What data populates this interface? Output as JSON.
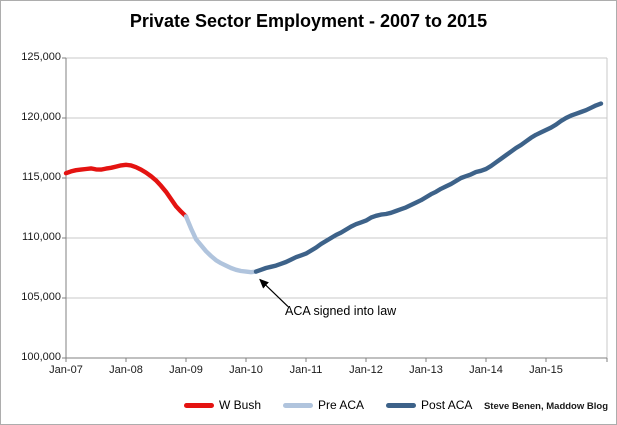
{
  "footer": {
    "credit": "Steve Benen, Maddow Blog"
  },
  "colors": {
    "w_bush": "#e41311",
    "pre_aca": "#b0c4dd",
    "post_aca": "#3d6289",
    "gridline": "#c9c9c9",
    "axis": "#808080"
  },
  "chart_data": {
    "type": "line",
    "title": "Private Sector Employment - 2007 to 2015",
    "xlabel": "",
    "ylabel": "",
    "ylim": [
      100000,
      125000
    ],
    "grid": true,
    "legend_position": "bottom",
    "x_start": "Jan-07",
    "x_end": "Dec-15",
    "months_total": 108,
    "y_ticks": [
      {
        "value": 100000,
        "label": "100,000"
      },
      {
        "value": 105000,
        "label": "105,000"
      },
      {
        "value": 110000,
        "label": "110,000"
      },
      {
        "value": 115000,
        "label": "115,000"
      },
      {
        "value": 120000,
        "label": "120,000"
      },
      {
        "value": 125000,
        "label": "125,000"
      }
    ],
    "x_tick_labels": [
      "Jan-07",
      "Jan-08",
      "Jan-09",
      "Jan-10",
      "Jan-11",
      "Jan-12",
      "Jan-13",
      "Jan-14",
      "Jan-15"
    ],
    "series": [
      {
        "name": "W Bush",
        "color": "#e41311",
        "start_month_index": 0,
        "values": [
          115400,
          115550,
          115650,
          115700,
          115750,
          115800,
          115720,
          115700,
          115780,
          115850,
          115950,
          116050,
          116100,
          116050,
          115900,
          115700,
          115450,
          115150,
          114800,
          114350,
          113850,
          113250,
          112650,
          112200,
          111800
        ]
      },
      {
        "name": "Pre ACA",
        "color": "#b0c4dd",
        "start_month_index": 24,
        "values": [
          111800,
          110800,
          109900,
          109400,
          108900,
          108500,
          108150,
          107900,
          107700,
          107500,
          107350,
          107250,
          107200,
          107150,
          107200
        ]
      },
      {
        "name": "Post ACA",
        "color": "#3d6289",
        "start_month_index": 38,
        "values": [
          107200,
          107350,
          107500,
          107600,
          107700,
          107850,
          108000,
          108200,
          108400,
          108550,
          108700,
          108950,
          109200,
          109500,
          109750,
          110000,
          110250,
          110450,
          110700,
          110950,
          111150,
          111300,
          111450,
          111700,
          111850,
          111950,
          112000,
          112100,
          112250,
          112400,
          112550,
          112750,
          112950,
          113150,
          113400,
          113650,
          113850,
          114100,
          114300,
          114500,
          114750,
          115000,
          115150,
          115300,
          115500,
          115600,
          115750,
          116000,
          116300,
          116600,
          116900,
          117200,
          117500,
          117750,
          118050,
          118350,
          118600,
          118800,
          119000,
          119200,
          119450,
          119750,
          120000,
          120200,
          120350,
          120500,
          120650,
          120850,
          121050,
          121200
        ]
      }
    ],
    "annotation": {
      "text": "ACA signed into law",
      "points_to_month": "Mar-10",
      "points_to_value": 107200
    }
  }
}
